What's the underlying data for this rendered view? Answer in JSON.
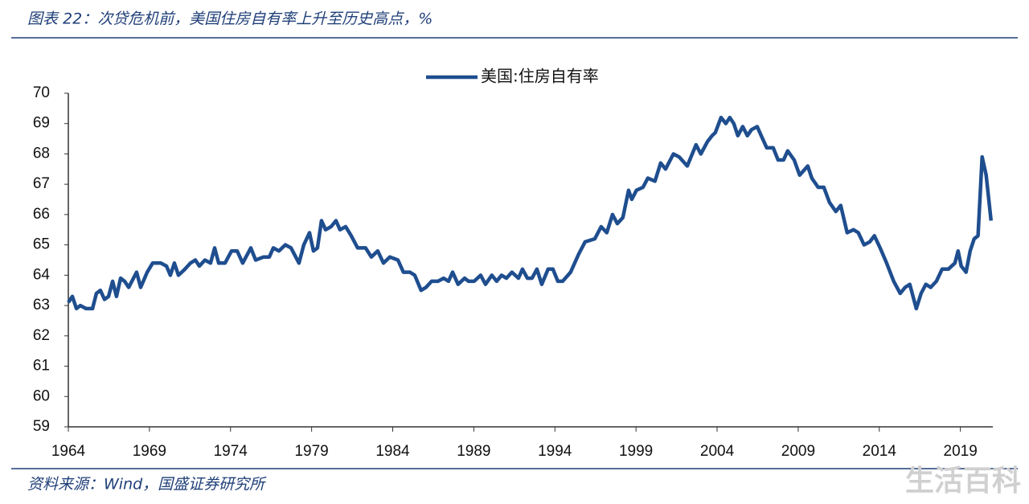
{
  "chart_data": {
    "type": "line",
    "title": "图表 22：次贷危机前，美国住房自有率上升至历史高点，%",
    "source": "资料来源：Wind，国盛证券研究所",
    "watermark": "生活百科",
    "legend": "top",
    "xlim": [
      1964,
      2021
    ],
    "xticks": [
      1964,
      1969,
      1974,
      1979,
      1984,
      1989,
      1994,
      1999,
      2004,
      2009,
      2014,
      2019
    ],
    "ylim": [
      59,
      70
    ],
    "yticks": [
      59,
      60,
      61,
      62,
      63,
      64,
      65,
      66,
      67,
      68,
      69,
      70
    ],
    "x": [
      1964,
      1964.25,
      1964.5,
      1964.74,
      1965.09,
      1965.49,
      1965.73,
      1965.98,
      1966.23,
      1966.48,
      1966.73,
      1966.97,
      1967.22,
      1967.47,
      1967.72,
      1968.21,
      1968.46,
      1968.86,
      1969.2,
      1969.7,
      1970.05,
      1970.29,
      1970.54,
      1970.79,
      1971.19,
      1971.53,
      1971.83,
      1972.08,
      1972.42,
      1972.77,
      1973.02,
      1973.27,
      1973.66,
      1974.06,
      1974.41,
      1974.75,
      1975.25,
      1975.55,
      1976.04,
      1976.39,
      1976.64,
      1976.98,
      1977.38,
      1977.73,
      1978.22,
      1978.52,
      1978.87,
      1979.11,
      1979.36,
      1979.61,
      1979.86,
      1980.2,
      1980.5,
      1980.75,
      1981.1,
      1981.44,
      1981.84,
      1982.33,
      1982.68,
      1983.08,
      1983.43,
      1983.82,
      1984.32,
      1984.66,
      1985.06,
      1985.36,
      1985.75,
      1986.05,
      1986.4,
      1986.79,
      1987.14,
      1987.44,
      1987.69,
      1988.03,
      1988.43,
      1988.68,
      1989.02,
      1989.42,
      1989.72,
      1990.11,
      1990.41,
      1990.71,
      1991.01,
      1991.35,
      1991.75,
      1992,
      1992.3,
      1992.59,
      1992.89,
      1993.19,
      1993.58,
      1993.88,
      1994.18,
      1994.48,
      1994.97,
      1995.47,
      1995.86,
      1996.46,
      1996.85,
      1997.2,
      1997.55,
      1997.85,
      1998.19,
      1998.54,
      1998.74,
      1999.03,
      1999.43,
      1999.73,
      2000.17,
      2000.52,
      2000.82,
      2001.31,
      2001.66,
      2002.16,
      2002.7,
      2003,
      2003.4,
      2003.69,
      2003.89,
      2004.24,
      2004.54,
      2004.78,
      2005.03,
      2005.28,
      2005.58,
      2005.87,
      2006.12,
      2006.47,
      2006.72,
      2007.06,
      2007.46,
      2007.76,
      2008.1,
      2008.35,
      2008.75,
      2009.09,
      2009.59,
      2009.84,
      2010.23,
      2010.58,
      2010.93,
      2011.32,
      2011.62,
      2012.02,
      2012.41,
      2012.71,
      2013.06,
      2013.41,
      2013.7,
      2014.05,
      2014.45,
      2014.89,
      2015.29,
      2015.59,
      2015.88,
      2016.28,
      2016.58,
      2016.87,
      2017.17,
      2017.52,
      2017.87,
      2018.26,
      2018.66,
      2018.86,
      2019.05,
      2019.35,
      2019.6,
      2019.85,
      2020.09,
      2020.34,
      2020.59,
      2020.89
    ],
    "series": [
      {
        "name": "美国:住房自有率",
        "color": "#1f4e8f",
        "values": [
          63.1,
          63.3,
          62.9,
          63.0,
          62.9,
          62.9,
          63.4,
          63.5,
          63.2,
          63.3,
          63.8,
          63.3,
          63.9,
          63.8,
          63.6,
          64.1,
          63.6,
          64.1,
          64.4,
          64.4,
          64.3,
          64.0,
          64.4,
          64.0,
          64.2,
          64.4,
          64.5,
          64.3,
          64.5,
          64.4,
          64.9,
          64.4,
          64.4,
          64.8,
          64.8,
          64.4,
          64.9,
          64.5,
          64.6,
          64.6,
          64.9,
          64.8,
          65.0,
          64.9,
          64.4,
          65.0,
          65.4,
          64.8,
          64.9,
          65.8,
          65.5,
          65.6,
          65.8,
          65.5,
          65.6,
          65.3,
          64.9,
          64.9,
          64.6,
          64.8,
          64.4,
          64.6,
          64.5,
          64.1,
          64.1,
          64.0,
          63.5,
          63.6,
          63.8,
          63.8,
          63.9,
          63.8,
          64.1,
          63.7,
          63.9,
          63.8,
          63.8,
          64.0,
          63.7,
          64.0,
          63.8,
          64.0,
          63.9,
          64.1,
          63.9,
          64.2,
          63.9,
          63.9,
          64.2,
          63.7,
          64.2,
          64.2,
          63.8,
          63.8,
          64.1,
          64.7,
          65.1,
          65.2,
          65.6,
          65.4,
          66.0,
          65.7,
          65.9,
          66.8,
          66.5,
          66.8,
          66.9,
          67.2,
          67.1,
          67.7,
          67.5,
          68.0,
          67.9,
          67.6,
          68.3,
          68.0,
          68.4,
          68.6,
          68.7,
          69.2,
          69.0,
          69.2,
          69.0,
          68.6,
          68.9,
          68.6,
          68.8,
          68.9,
          68.6,
          68.2,
          68.2,
          67.8,
          67.8,
          68.1,
          67.8,
          67.3,
          67.6,
          67.2,
          66.9,
          66.9,
          66.4,
          66.1,
          66.3,
          65.4,
          65.5,
          65.4,
          65.0,
          65.1,
          65.3,
          64.9,
          64.4,
          63.8,
          63.4,
          63.6,
          63.7,
          62.9,
          63.4,
          63.7,
          63.6,
          63.8,
          64.2,
          64.2,
          64.4,
          64.8,
          64.3,
          64.1,
          64.8,
          65.2,
          65.3,
          67.9,
          67.3,
          65.8
        ]
      }
    ]
  }
}
